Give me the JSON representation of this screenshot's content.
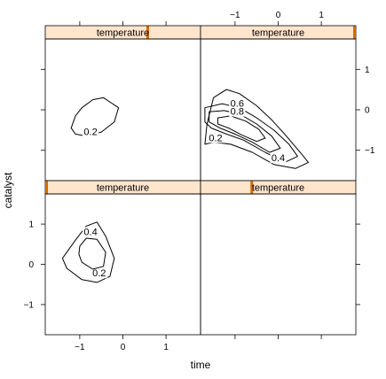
{
  "chart_data": {
    "type": "contour",
    "layout": "lattice 2x2 panels",
    "xlabel": "time",
    "ylabel": "catalyst",
    "xlim": [
      -1.8,
      1.8
    ],
    "ylim": [
      -1.75,
      1.75
    ],
    "x_ticks": [
      -1,
      0,
      1
    ],
    "y_ticks": [
      -1,
      0,
      1
    ],
    "strip_bg": "#ffe5cc",
    "strip_marker": "#d66a00",
    "line_color": "#000000",
    "panels": [
      {
        "position": "top-left",
        "strip": "temperature",
        "strip_level": 0.66,
        "contours": [
          {
            "level": "0.2",
            "points": [
              [
                -1.2,
                -0.45
              ],
              [
                -1.1,
                -0.15
              ],
              [
                -0.95,
                0.05
              ],
              [
                -0.7,
                0.25
              ],
              [
                -0.45,
                0.3
              ],
              [
                -0.1,
                0.05
              ],
              [
                -0.2,
                -0.3
              ],
              [
                -0.5,
                -0.55
              ],
              [
                -0.85,
                -0.65
              ],
              [
                -1.1,
                -0.6
              ]
            ],
            "label_at": [
              -0.75,
              -0.6
            ]
          }
        ]
      },
      {
        "position": "top-right",
        "strip": "temperature",
        "strip_level": 1.0,
        "contours": [
          {
            "level": "0.2",
            "points": [
              [
                -1.7,
                -0.85
              ],
              [
                -1.65,
                -0.35
              ],
              [
                -1.5,
                0.3
              ],
              [
                -1.2,
                0.5
              ],
              [
                -0.9,
                0.4
              ],
              [
                -0.5,
                0.1
              ],
              [
                -0.15,
                -0.25
              ],
              [
                0.15,
                -0.6
              ],
              [
                0.55,
                -1.1
              ],
              [
                0.7,
                -1.3
              ],
              [
                0.4,
                -1.45
              ],
              [
                -0.1,
                -1.35
              ],
              [
                -0.6,
                -1.05
              ],
              [
                -1.1,
                -0.85
              ],
              [
                -1.5,
                -0.8
              ]
            ],
            "label_at": [
              -1.45,
              -0.75
            ]
          },
          {
            "level": "0.4",
            "points": [
              [
                -1.7,
                0.05
              ],
              [
                -1.3,
                0.15
              ],
              [
                -0.9,
                0.05
              ],
              [
                -0.5,
                -0.2
              ],
              [
                -0.1,
                -0.5
              ],
              [
                0.25,
                -0.85
              ],
              [
                0.45,
                -1.15
              ],
              [
                0.15,
                -1.3
              ],
              [
                -0.3,
                -1.05
              ],
              [
                -0.8,
                -0.75
              ],
              [
                -1.2,
                -0.6
              ],
              [
                -1.55,
                -0.45
              ],
              [
                -1.7,
                -0.3
              ]
            ],
            "label_at": [
              0.0,
              -1.25
            ]
          },
          {
            "level": "0.6",
            "points": [
              [
                -1.6,
                -0.05
              ],
              [
                -1.25,
                -0.02
              ],
              [
                -0.9,
                -0.1
              ],
              [
                -0.5,
                -0.35
              ],
              [
                -0.15,
                -0.65
              ],
              [
                0.05,
                -0.95
              ],
              [
                -0.2,
                -1.05
              ],
              [
                -0.6,
                -0.8
              ],
              [
                -1.0,
                -0.6
              ],
              [
                -1.35,
                -0.45
              ],
              [
                -1.6,
                -0.3
              ]
            ],
            "label_at": [
              -0.95,
              0.1
            ]
          },
          {
            "level": "0.8",
            "points": [
              [
                -1.4,
                -0.2
              ],
              [
                -1.1,
                -0.15
              ],
              [
                -0.75,
                -0.28
              ],
              [
                -0.45,
                -0.48
              ],
              [
                -0.3,
                -0.7
              ],
              [
                -0.5,
                -0.78
              ],
              [
                -0.85,
                -0.62
              ],
              [
                -1.15,
                -0.45
              ],
              [
                -1.4,
                -0.35
              ]
            ],
            "label_at": [
              -0.95,
              -0.1
            ]
          }
        ]
      },
      {
        "position": "bottom-left",
        "strip": "temperature",
        "strip_level": 0.0,
        "contours": [
          {
            "level": "0.2",
            "points": [
              [
                -1.4,
                0.15
              ],
              [
                -1.1,
                0.6
              ],
              [
                -0.85,
                0.95
              ],
              [
                -0.6,
                1.05
              ],
              [
                -0.4,
                0.7
              ],
              [
                -0.2,
                0.15
              ],
              [
                -0.3,
                -0.3
              ],
              [
                -0.6,
                -0.45
              ],
              [
                -0.95,
                -0.38
              ],
              [
                -1.3,
                -0.1
              ]
            ],
            "label_at": [
              -0.55,
              -0.28
            ]
          },
          {
            "level": "0.4",
            "points": [
              [
                -1.0,
                0.45
              ],
              [
                -0.85,
                0.65
              ],
              [
                -0.6,
                0.62
              ],
              [
                -0.4,
                0.3
              ],
              [
                -0.45,
                -0.05
              ],
              [
                -0.7,
                -0.12
              ],
              [
                -0.95,
                0.05
              ],
              [
                -1.02,
                0.25
              ]
            ],
            "label_at": [
              -0.75,
              0.75
            ]
          }
        ]
      },
      {
        "position": "bottom-right",
        "strip": "temperature",
        "strip_level": 0.33,
        "contours": []
      }
    ]
  }
}
